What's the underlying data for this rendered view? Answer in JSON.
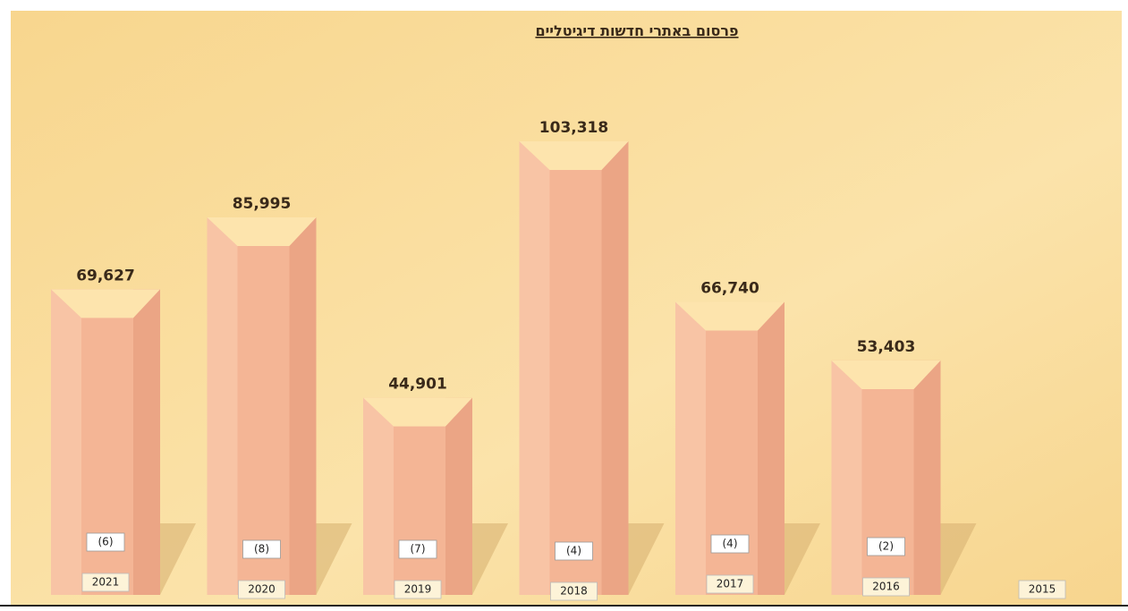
{
  "chart_data": {
    "type": "bar",
    "title": "פרסום באתרי חדשות דיגיטליים",
    "categories": [
      "2021",
      "2020",
      "2019",
      "2018",
      "2017",
      "2016",
      "2015"
    ],
    "values": [
      69627,
      85995,
      44901,
      103318,
      66740,
      53403,
      null
    ],
    "value_labels": [
      "69,627",
      "85,995",
      "44,901",
      "103,318",
      "66,740",
      "53,403",
      null
    ],
    "box_labels": [
      "(6)",
      "(8)",
      "(7)",
      "(4)",
      "(4)",
      "(2)",
      null
    ],
    "color": "#f4b595"
  }
}
